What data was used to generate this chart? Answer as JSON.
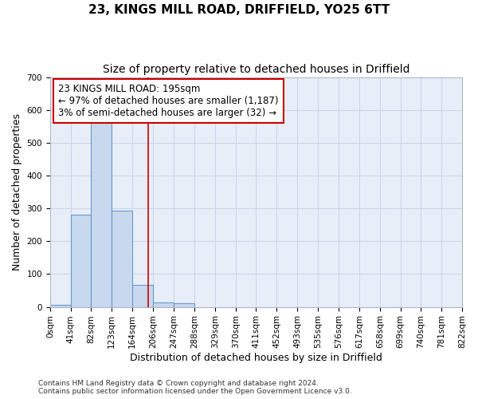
{
  "title": "23, KINGS MILL ROAD, DRIFFIELD, YO25 6TT",
  "subtitle": "Size of property relative to detached houses in Driffield",
  "xlabel": "Distribution of detached houses by size in Driffield",
  "ylabel": "Number of detached properties",
  "bin_edges": [
    0,
    41,
    82,
    123,
    164,
    206,
    247,
    288,
    329,
    370,
    411,
    452,
    493,
    535,
    576,
    617,
    658,
    699,
    740,
    781,
    822
  ],
  "bar_heights": [
    7,
    282,
    560,
    293,
    68,
    14,
    10,
    0,
    0,
    0,
    0,
    0,
    0,
    0,
    0,
    0,
    0,
    0,
    0,
    0
  ],
  "bar_color": "#c8d8ee",
  "bar_edge_color": "#6699cc",
  "grid_color": "#c8d4e8",
  "background_color": "#e8eef8",
  "property_size": 195,
  "vline_color": "#cc0000",
  "annotation_line1": "23 KINGS MILL ROAD: 195sqm",
  "annotation_line2": "← 97% of detached houses are smaller (1,187)",
  "annotation_line3": "3% of semi-detached houses are larger (32) →",
  "annotation_box_color": "#cc0000",
  "ylim": [
    0,
    700
  ],
  "yticks": [
    0,
    100,
    200,
    300,
    400,
    500,
    600,
    700
  ],
  "footer_line1": "Contains HM Land Registry data © Crown copyright and database right 2024.",
  "footer_line2": "Contains public sector information licensed under the Open Government Licence v3.0.",
  "title_fontsize": 11,
  "subtitle_fontsize": 10,
  "axis_label_fontsize": 9,
  "tick_label_fontsize": 7.5,
  "annotation_fontsize": 8.5,
  "footer_fontsize": 6.5
}
